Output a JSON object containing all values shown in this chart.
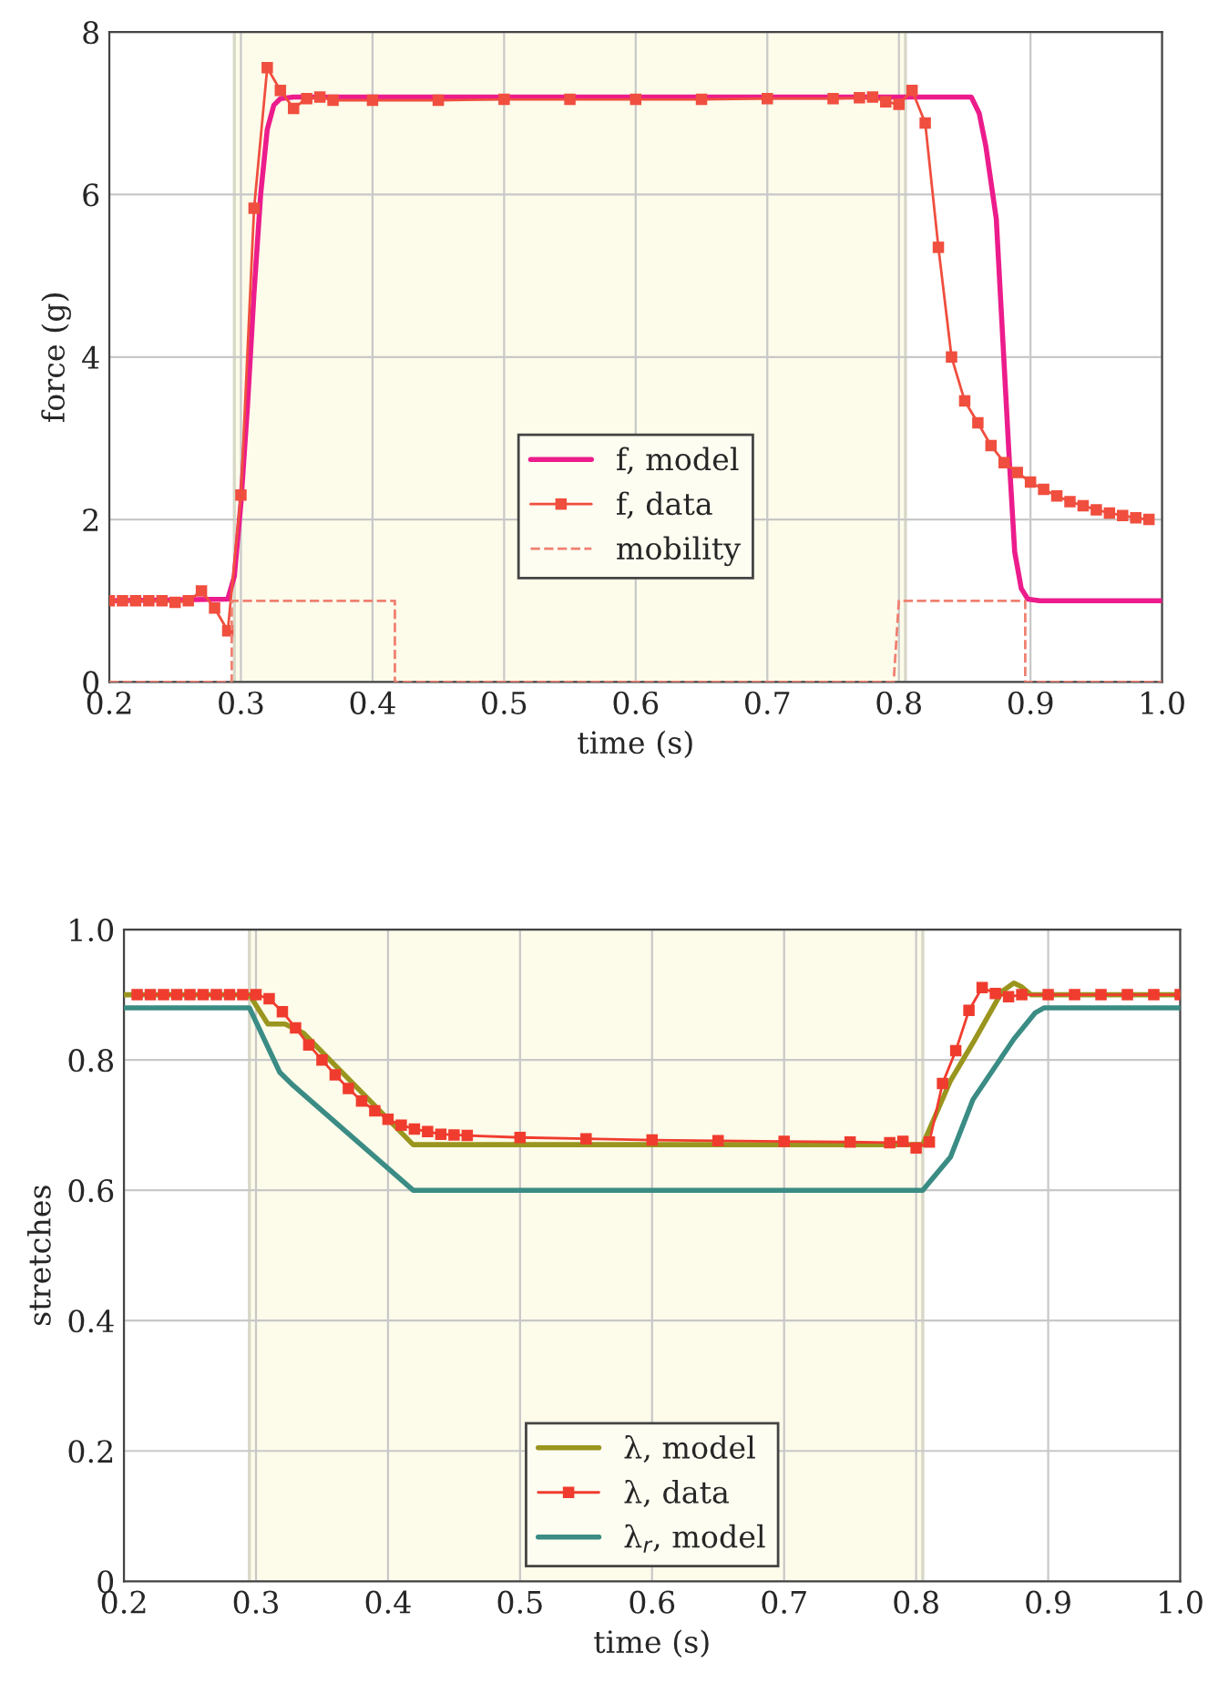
{
  "chart_data": [
    {
      "type": "line",
      "xlabel": "time (s)",
      "ylabel": "force (g)",
      "xlim": [
        0.2,
        1.0
      ],
      "ylim": [
        0,
        8
      ],
      "xticks": [
        0.2,
        0.3,
        0.4,
        0.5,
        0.6,
        0.7,
        0.8,
        0.9,
        {
          "value": 1.0,
          "label": "1.0"
        }
      ],
      "yticks": [
        0,
        2,
        4,
        6,
        8
      ],
      "grid": true,
      "legend": "center",
      "bands": [
        {
          "axis": "x",
          "from": 0.295,
          "to": 0.805,
          "color": "#fdfbea"
        }
      ],
      "ref_lines": [
        {
          "axis": "x",
          "value": 0.295,
          "color": "#d8d8c8"
        },
        {
          "axis": "x",
          "value": 0.805,
          "color": "#d8d8c8"
        }
      ],
      "series": [
        {
          "name": "f, model",
          "color": "#ec1c8c",
          "marker": "none",
          "line_style": "solid",
          "x": [
            0.2,
            0.29,
            0.295,
            0.3,
            0.305,
            0.31,
            0.315,
            0.32,
            0.325,
            0.33,
            0.34,
            0.855,
            0.861,
            0.866,
            0.874,
            0.879,
            0.884,
            0.888,
            0.893,
            0.898,
            0.907,
            1.0
          ],
          "values": [
            1,
            1.02,
            1.3,
            2.2,
            3.4,
            4.8,
            6.0,
            6.8,
            7.1,
            7.18,
            7.2,
            7.2,
            7.0,
            6.6,
            5.7,
            4.2,
            2.7,
            1.6,
            1.15,
            1.02,
            1.0,
            1.0
          ]
        },
        {
          "name": "f, data",
          "color": "#f04e3e",
          "marker": "square",
          "line_style": "solid",
          "x": [
            0.2,
            0.21,
            0.22,
            0.23,
            0.24,
            0.25,
            0.26,
            0.27,
            0.28,
            0.29,
            0.3,
            0.31,
            0.32,
            0.33,
            0.34,
            0.35,
            0.36,
            0.37,
            0.4,
            0.45,
            0.5,
            0.55,
            0.6,
            0.65,
            0.7,
            0.75,
            0.77,
            0.78,
            0.79,
            0.8,
            0.81,
            0.82,
            0.83,
            0.84,
            0.85,
            0.86,
            0.87,
            0.88,
            0.89,
            0.9,
            0.91,
            0.92,
            0.93,
            0.94,
            0.95,
            0.96,
            0.97,
            0.98,
            0.99
          ],
          "values": [
            1.0,
            1.0,
            1.0,
            1.0,
            1.0,
            0.98,
            1.0,
            1.12,
            0.91,
            0.63,
            2.3,
            5.83,
            7.56,
            7.28,
            7.06,
            7.18,
            7.2,
            7.16,
            7.16,
            7.16,
            7.17,
            7.17,
            7.17,
            7.17,
            7.18,
            7.18,
            7.19,
            7.2,
            7.14,
            7.11,
            7.28,
            6.88,
            5.35,
            4.0,
            3.46,
            3.19,
            2.91,
            2.7,
            2.58,
            2.46,
            2.37,
            2.29,
            2.22,
            2.17,
            2.12,
            2.08,
            2.05,
            2.02,
            2.0
          ]
        },
        {
          "name": "mobility",
          "color": "#f08070",
          "marker": "none",
          "line_style": "dashed",
          "x": [
            0.2,
            0.293,
            0.293,
            0.417,
            0.417,
            0.796,
            0.8,
            0.896,
            0.896,
            1.0
          ],
          "values": [
            0,
            0,
            1,
            1,
            0,
            0,
            1,
            1,
            0,
            0
          ]
        }
      ]
    },
    {
      "type": "line",
      "xlabel": "time (s)",
      "ylabel": "stretches",
      "xlim": [
        0.2,
        1.0
      ],
      "ylim": [
        0,
        1.0
      ],
      "xticks": [
        0.2,
        0.3,
        0.4,
        0.5,
        0.6,
        0.7,
        0.8,
        0.9,
        {
          "value": 1.0,
          "label": "1.0"
        }
      ],
      "yticks": [
        0,
        0.2,
        0.4,
        0.6,
        0.8,
        {
          "value": 1.0,
          "label": "1.0"
        }
      ],
      "grid": true,
      "legend": "bottom",
      "bands": [
        {
          "axis": "x",
          "from": 0.295,
          "to": 0.805,
          "color": "#fdfbea"
        }
      ],
      "ref_lines": [
        {
          "axis": "x",
          "value": 0.295,
          "color": "#d8d8c8"
        },
        {
          "axis": "x",
          "value": 0.805,
          "color": "#d8d8c8"
        }
      ],
      "series": [
        {
          "name": "λ, model",
          "color": "#9a951e",
          "marker": "none",
          "line_style": "solid",
          "x": [
            0.2,
            0.295,
            0.309,
            0.322,
            0.336,
            0.419,
            0.805,
            0.826,
            0.843,
            0.865,
            0.874,
            0.88,
            0.887,
            1.0
          ],
          "values": [
            0.9,
            0.9,
            0.855,
            0.855,
            0.841,
            0.67,
            0.67,
            0.768,
            0.826,
            0.905,
            0.918,
            0.912,
            0.9,
            0.9
          ]
        },
        {
          "name": "λ, data",
          "color": "#f03c2e",
          "marker": "square",
          "line_style": "solid",
          "x": [
            0.21,
            0.22,
            0.23,
            0.24,
            0.25,
            0.26,
            0.27,
            0.28,
            0.29,
            0.3,
            0.31,
            0.32,
            0.33,
            0.34,
            0.35,
            0.36,
            0.37,
            0.38,
            0.39,
            0.4,
            0.41,
            0.42,
            0.43,
            0.44,
            0.45,
            0.46,
            0.5,
            0.55,
            0.6,
            0.65,
            0.7,
            0.75,
            0.78,
            0.79,
            0.8,
            0.81,
            0.82,
            0.83,
            0.84,
            0.85,
            0.86,
            0.87,
            0.88,
            0.9,
            0.92,
            0.94,
            0.96,
            0.98,
            1.0
          ],
          "values": [
            0.9,
            0.9,
            0.9,
            0.9,
            0.9,
            0.9,
            0.9,
            0.9,
            0.9,
            0.9,
            0.894,
            0.874,
            0.849,
            0.823,
            0.8,
            0.777,
            0.756,
            0.737,
            0.722,
            0.709,
            0.7,
            0.694,
            0.69,
            0.686,
            0.685,
            0.684,
            0.681,
            0.679,
            0.677,
            0.676,
            0.675,
            0.674,
            0.673,
            0.675,
            0.665,
            0.674,
            0.764,
            0.814,
            0.876,
            0.911,
            0.902,
            0.897,
            0.9,
            0.9,
            0.9,
            0.9,
            0.9,
            0.9,
            0.9
          ]
        },
        {
          "name": "λ$_{r}$, model",
          "color": "#3a8c84",
          "marker": "none",
          "line_style": "solid",
          "x": [
            0.2,
            0.295,
            0.318,
            0.327,
            0.419,
            0.805,
            0.826,
            0.843,
            0.874,
            0.89,
            0.897,
            1.0
          ],
          "values": [
            0.88,
            0.88,
            0.781,
            0.763,
            0.6,
            0.6,
            0.651,
            0.739,
            0.832,
            0.872,
            0.88,
            0.88
          ]
        }
      ]
    }
  ]
}
